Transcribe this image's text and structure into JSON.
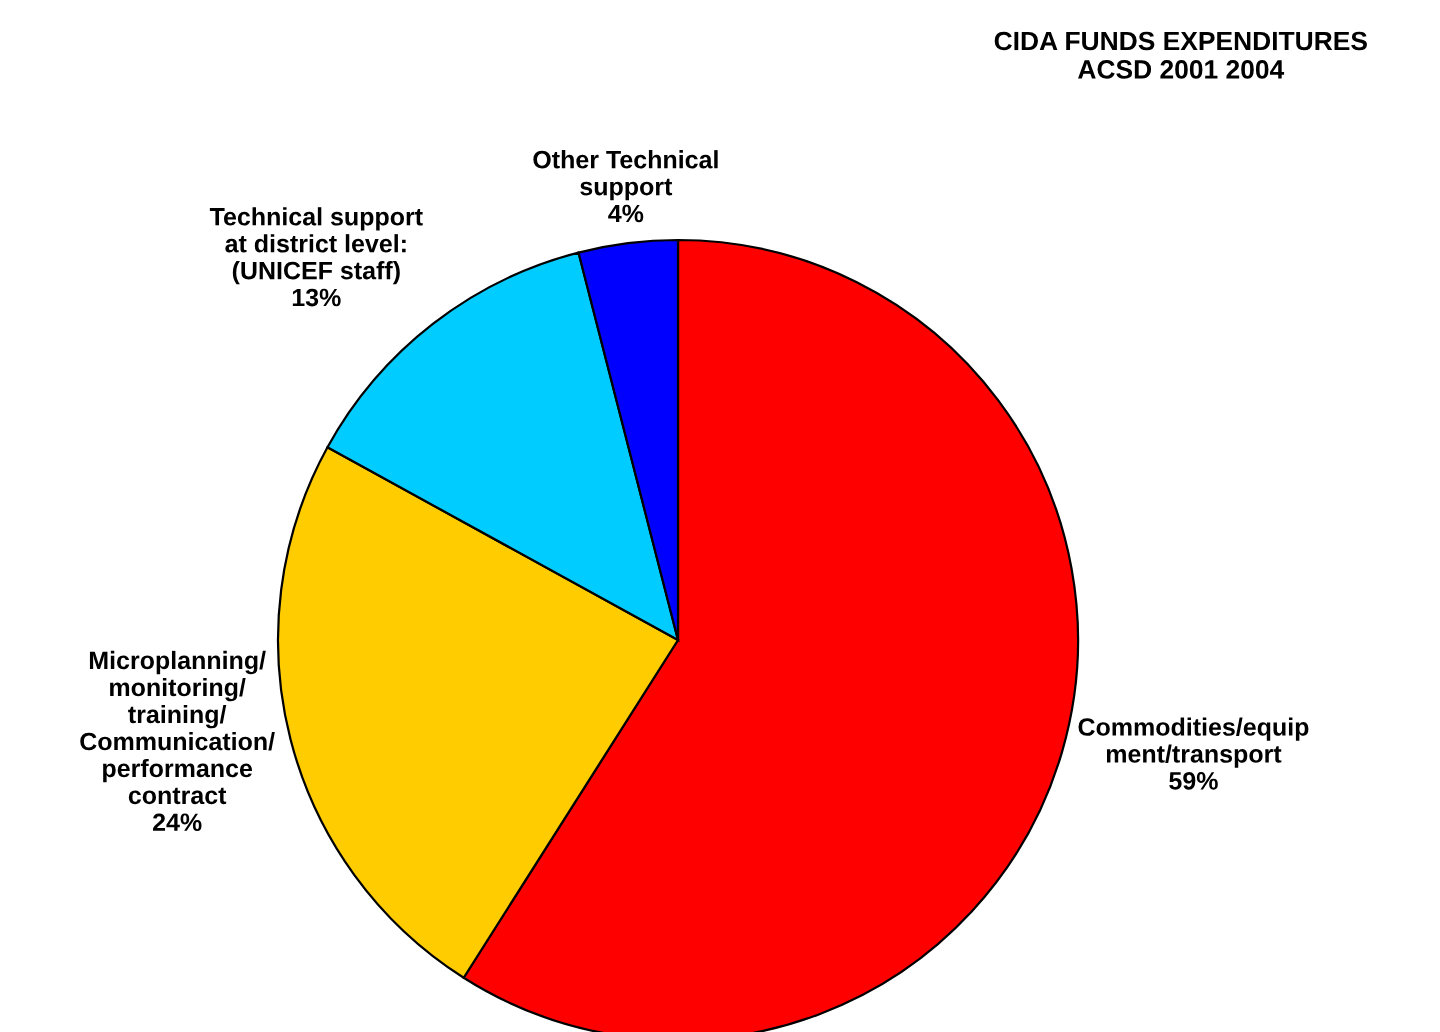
{
  "chart_data": {
    "type": "pie",
    "title": "CIDA FUNDS EXPENDITURES\nACSD 2001 2004",
    "categories": [
      "Commodities/equip\nment/transport",
      "Microplanning/\nmonitoring/\ntraining/\nCommunication/\nperformance\ncontract",
      "Technical support\nat district level:\n(UNICEF staff)",
      "Other Technical\nsupport"
    ],
    "values": [
      59,
      24,
      13,
      4
    ],
    "colors": [
      "#ff0000",
      "#ffcc00",
      "#00ccff",
      "#0000ff"
    ],
    "value_labels": [
      "59%",
      "24%",
      "13%",
      "4%"
    ],
    "legend": false
  }
}
